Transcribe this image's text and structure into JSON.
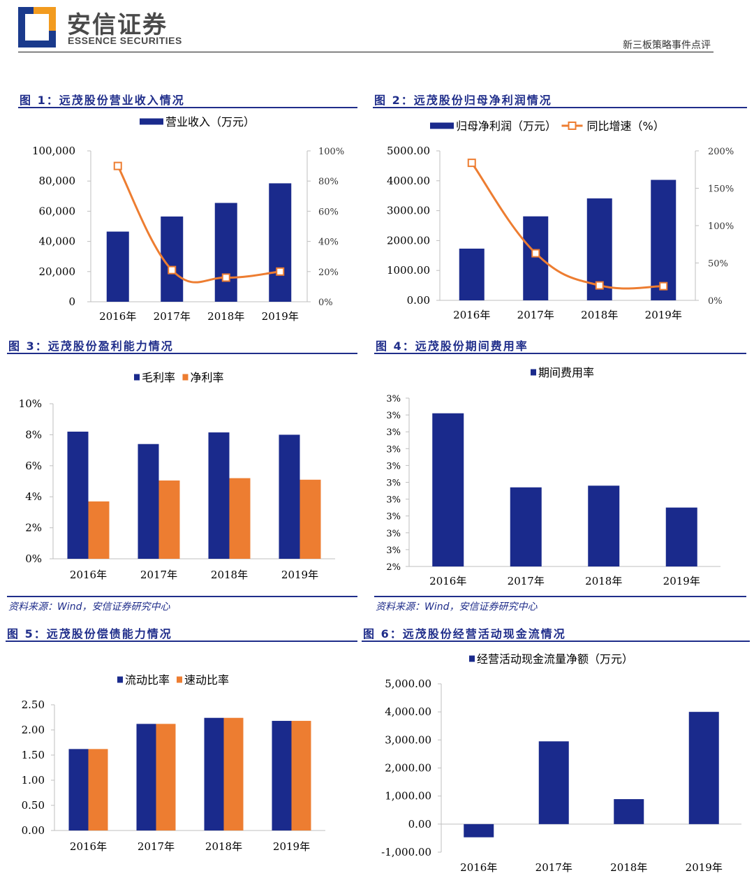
{
  "header": {
    "company_cn": "安信证券",
    "company_en": "ESSENCE SECURITIES",
    "report_type": "新三板策略事件点评"
  },
  "colors": {
    "navy": "#1a2a8c",
    "orange": "#ed7d31",
    "title_blue": "#1f2d8a"
  },
  "source_text": "资料来源：Wind，安信证券研究中心",
  "chart_data": [
    {
      "id": "fig1",
      "title": "图 1：远茂股份营业收入情况",
      "type": "bar",
      "categories": [
        "2016年",
        "2017年",
        "2018年",
        "2019年"
      ],
      "series": [
        {
          "name": "营业收入（万元）",
          "type": "bar",
          "axis": "left",
          "values": [
            46500,
            56500,
            65500,
            78500
          ]
        },
        {
          "name": "",
          "type": "line",
          "axis": "right",
          "values": [
            0.9,
            0.21,
            0.16,
            0.2
          ]
        }
      ],
      "y_left": {
        "min": 0,
        "max": 100000,
        "ticks": [
          "0",
          "20,000",
          "40,000",
          "60,000",
          "80,000",
          "100,000"
        ]
      },
      "y_right": {
        "min": 0,
        "max": 1,
        "ticks": [
          "0%",
          "20%",
          "40%",
          "60%",
          "80%",
          "100%"
        ]
      }
    },
    {
      "id": "fig2",
      "title": "图 2：远茂股份归母净利润情况",
      "type": "bar",
      "categories": [
        "2016年",
        "2017年",
        "2018年",
        "2019年"
      ],
      "series": [
        {
          "name": "归母净利润（万元）",
          "type": "bar",
          "axis": "left",
          "values": [
            1730,
            2810,
            3410,
            4030
          ]
        },
        {
          "name": "同比增速（%）",
          "type": "line",
          "axis": "right",
          "values": [
            1.84,
            0.63,
            0.2,
            0.19
          ]
        }
      ],
      "y_left": {
        "min": 0,
        "max": 5000,
        "ticks": [
          "0.00",
          "1000.00",
          "2000.00",
          "3000.00",
          "4000.00",
          "5000.00"
        ]
      },
      "y_right": {
        "min": 0,
        "max": 2,
        "ticks": [
          "0%",
          "50%",
          "100%",
          "150%",
          "200%"
        ]
      }
    },
    {
      "id": "fig3",
      "title": "图 3：远茂股份盈利能力情况",
      "type": "bar",
      "categories": [
        "2016年",
        "2017年",
        "2018年",
        "2019年"
      ],
      "series": [
        {
          "name": "毛利率",
          "values": [
            0.082,
            0.074,
            0.0815,
            0.08
          ]
        },
        {
          "name": "净利率",
          "values": [
            0.037,
            0.0505,
            0.052,
            0.051
          ]
        }
      ],
      "y_left": {
        "min": 0,
        "max": 0.1,
        "ticks": [
          "0%",
          "2%",
          "4%",
          "6%",
          "8%",
          "10%"
        ]
      }
    },
    {
      "id": "fig4",
      "title": "图 4：远茂股份期间费用率",
      "type": "bar",
      "categories": [
        "2016年",
        "2017年",
        "2018年",
        "2019年"
      ],
      "series": [
        {
          "name": "期间费用率",
          "values": [
            0.0291,
            0.0247,
            0.0248,
            0.0235
          ]
        }
      ],
      "y_left": {
        "min": 0.02,
        "max": 0.03,
        "ticks": [
          "2%",
          "3%",
          "3%",
          "3%",
          "3%",
          "3%",
          "3%",
          "3%",
          "3%",
          "3%",
          "3%"
        ]
      }
    },
    {
      "id": "fig5",
      "title": "图 5：远茂股份偿债能力情况",
      "type": "bar",
      "categories": [
        "2016年",
        "2017年",
        "2018年",
        "2019年"
      ],
      "series": [
        {
          "name": "流动比率",
          "values": [
            1.62,
            2.12,
            2.24,
            2.18
          ]
        },
        {
          "name": "速动比率",
          "values": [
            1.62,
            2.12,
            2.24,
            2.18
          ]
        }
      ],
      "y_left": {
        "min": 0,
        "max": 2.5,
        "ticks": [
          "0.00",
          "0.50",
          "1.00",
          "1.50",
          "2.00",
          "2.50"
        ]
      }
    },
    {
      "id": "fig6",
      "title": "图 6：远茂股份经营活动现金流情况",
      "type": "bar",
      "categories": [
        "2016年",
        "2017年",
        "2018年",
        "2019年"
      ],
      "series": [
        {
          "name": "经营活动现金流量净额（万元）",
          "values": [
            -470,
            2950,
            890,
            4000
          ]
        }
      ],
      "y_left": {
        "min": -1000,
        "max": 5000,
        "ticks": [
          "-1,000.00",
          "0.00",
          "1,000.00",
          "2,000.00",
          "3,000.00",
          "4,000.00",
          "5,000.00"
        ]
      }
    }
  ]
}
